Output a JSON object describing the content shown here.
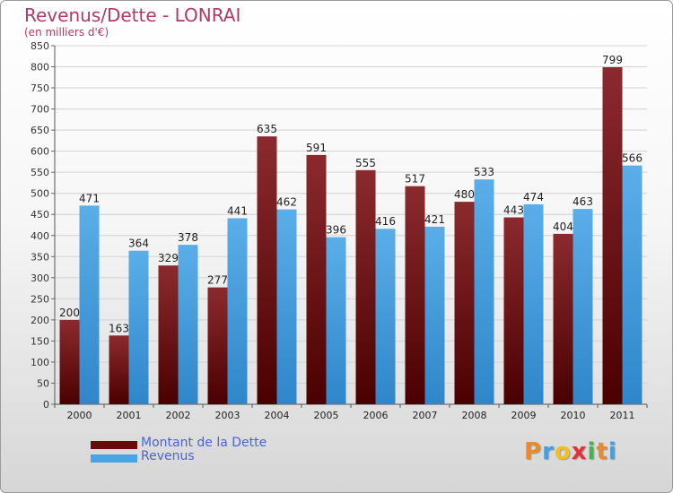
{
  "header": {
    "title": "Revenus/Dette - LONRAI",
    "subtitle": "(en milliers d'€)"
  },
  "chart_data": {
    "type": "bar",
    "title": "Revenus/Dette - LONRAI",
    "ylabel": "(en milliers d'€)",
    "xlabel": "",
    "ylim": [
      0,
      850
    ],
    "ytick_step": 50,
    "grid": true,
    "legend_position": "bottom-left",
    "categories": [
      "2000",
      "2001",
      "2002",
      "2003",
      "2004",
      "2005",
      "2006",
      "2007",
      "2008",
      "2009",
      "2010",
      "2011"
    ],
    "series": [
      {
        "name": "Montant de la Dette",
        "color": "#8b2a2e",
        "color_dark": "#4a0000",
        "values": [
          200,
          163,
          329,
          277,
          635,
          591,
          555,
          517,
          480,
          443,
          404,
          799
        ]
      },
      {
        "name": "Revenus",
        "color": "#5aaee8",
        "color_dark": "#2f86c9",
        "values": [
          471,
          364,
          378,
          441,
          462,
          396,
          416,
          421,
          533,
          474,
          463,
          566
        ]
      }
    ]
  },
  "legend": {
    "items": [
      {
        "label": "Montant de la Dette",
        "color": "#6b0a0a"
      },
      {
        "label": "Revenus",
        "color": "#4aa3e2"
      }
    ]
  },
  "logo": {
    "text": "Proxiti",
    "colors": [
      "#e88b2e",
      "#4a9fd8",
      "#f0c020",
      "#e0333a",
      "#4caf50",
      "#e88b2e",
      "#4a9fd8"
    ]
  }
}
